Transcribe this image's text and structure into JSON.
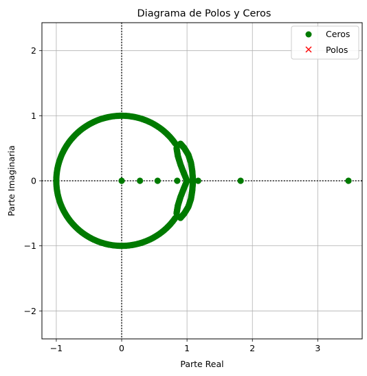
{
  "chart_data": {
    "type": "scatter",
    "title": "Diagrama de Polos y Ceros",
    "xlabel": "Parte Real",
    "ylabel": "Parte Imaginaria",
    "xlim": [
      -1.22,
      3.68
    ],
    "ylim": [
      -2.43,
      2.43
    ],
    "xticks": [
      -1,
      0,
      1,
      2,
      3
    ],
    "yticks": [
      -2,
      -1,
      0,
      1,
      2
    ],
    "xtick_labels": [
      "−1",
      "0",
      "1",
      "2",
      "3"
    ],
    "ytick_labels": [
      "−2",
      "−1",
      "0",
      "1",
      "2"
    ],
    "grid": true,
    "reference_lines": [
      {
        "axis": "y",
        "value": 0,
        "style": "dotted",
        "color": "#000000"
      },
      {
        "axis": "x",
        "value": 0,
        "style": "dotted",
        "color": "#000000"
      }
    ],
    "legend": {
      "position": "top-right"
    },
    "series": [
      {
        "name": "Ceros",
        "marker": "circle",
        "color": "#007a00",
        "unit_circle_arc": {
          "from_deg": 35,
          "to_deg": 325,
          "count": 220
        },
        "lobe_curves": [
          {
            "points": [
              [
                1.0,
                0.0
              ],
              [
                0.95,
                0.12
              ],
              [
                0.9,
                0.25
              ],
              [
                0.86,
                0.38
              ],
              [
                0.84,
                0.5
              ]
            ]
          },
          {
            "points": [
              [
                1.0,
                0.0
              ],
              [
                0.95,
                -0.12
              ],
              [
                0.9,
                -0.25
              ],
              [
                0.86,
                -0.38
              ],
              [
                0.84,
                -0.5
              ]
            ]
          },
          {
            "points": [
              [
                0.9,
                0.57
              ],
              [
                0.96,
                0.5
              ],
              [
                1.02,
                0.4
              ],
              [
                1.06,
                0.28
              ],
              [
                1.08,
                0.15
              ],
              [
                1.09,
                0.02
              ]
            ]
          },
          {
            "points": [
              [
                0.9,
                -0.57
              ],
              [
                0.96,
                -0.5
              ],
              [
                1.02,
                -0.4
              ],
              [
                1.06,
                -0.28
              ],
              [
                1.08,
                -0.15
              ],
              [
                1.09,
                -0.02
              ]
            ]
          }
        ],
        "real_points": [
          [
            0,
            0
          ],
          [
            0.28,
            0
          ],
          [
            0.55,
            0
          ],
          [
            0.85,
            0
          ],
          [
            1.17,
            0
          ],
          [
            1.82,
            0
          ],
          [
            3.47,
            0
          ]
        ]
      },
      {
        "name": "Polos",
        "marker": "x",
        "color": "#ff0000",
        "points": []
      }
    ]
  }
}
